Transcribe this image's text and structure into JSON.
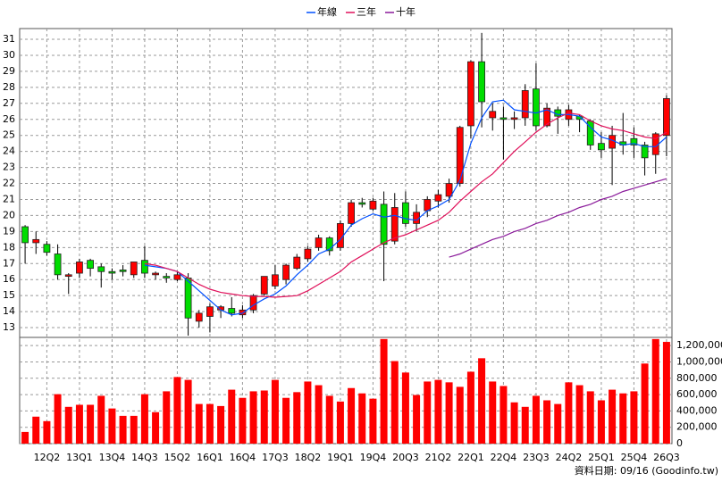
{
  "chart_data": [
    {
      "type": "candlestick",
      "categories": [
        null,
        null,
        "12Q2",
        null,
        null,
        "13Q1",
        null,
        null,
        "13Q4",
        null,
        null,
        "14Q3",
        null,
        null,
        "15Q2",
        null,
        null,
        "16Q1",
        null,
        null,
        "16Q4",
        null,
        null,
        "17Q3",
        null,
        null,
        "18Q2",
        null,
        null,
        "19Q1",
        null,
        null,
        "19Q4",
        null,
        null,
        "20Q3",
        null,
        null,
        "21Q2",
        null,
        null,
        "22Q1",
        null,
        null,
        "22Q4",
        null,
        null,
        "23Q3",
        null,
        null,
        "24Q2",
        null,
        null,
        "25Q1",
        null,
        null,
        "25Q4",
        null,
        null,
        "26Q3"
      ],
      "open": [
        19.3,
        18.3,
        18.2,
        17.6,
        16.2,
        16.4,
        17.2,
        16.8,
        16.5,
        16.6,
        16.3,
        17.2,
        16.3,
        16.2,
        16.0,
        16.1,
        13.4,
        13.7,
        14.1,
        14.2,
        13.8,
        14.1,
        15.1,
        15.6,
        16.0,
        16.7,
        17.3,
        18.0,
        18.6,
        18.0,
        19.5,
        20.8,
        20.4,
        20.7,
        18.4,
        20.8,
        19.5,
        20.3,
        20.9,
        21.2,
        22.0,
        25.6,
        29.6,
        26.1,
        26.1,
        26.0,
        26.1,
        27.9,
        25.6,
        26.6,
        26.0,
        26.2,
        25.9,
        24.5,
        24.2,
        24.6,
        24.8,
        24.4,
        23.8,
        25.0
      ],
      "high": [
        19.4,
        19.0,
        18.4,
        18.2,
        16.4,
        17.3,
        17.3,
        17.0,
        16.7,
        16.9,
        17.1,
        18.1,
        16.5,
        16.4,
        16.5,
        16.4,
        14.1,
        14.5,
        14.4,
        14.9,
        14.4,
        15.1,
        16.2,
        16.9,
        17.0,
        17.6,
        18.1,
        18.8,
        18.7,
        19.7,
        21.0,
        21.1,
        21.1,
        21.5,
        21.4,
        21.5,
        20.7,
        21.2,
        21.6,
        22.3,
        25.6,
        29.7,
        31.4,
        27.0,
        26.8,
        26.5,
        28.2,
        29.5,
        27.0,
        26.8,
        26.9,
        26.3,
        26.0,
        25.2,
        25.6,
        26.4,
        25.5,
        24.6,
        25.2,
        27.5
      ],
      "low": [
        17.0,
        17.6,
        17.5,
        16.0,
        15.1,
        16.1,
        16.2,
        15.5,
        16.0,
        16.2,
        16.1,
        16.1,
        16.0,
        15.8,
        15.9,
        12.5,
        13.0,
        12.7,
        13.6,
        13.7,
        13.6,
        13.9,
        15.0,
        15.4,
        15.7,
        16.6,
        17.1,
        17.8,
        17.5,
        17.8,
        19.3,
        20.5,
        20.3,
        15.9,
        18.2,
        19.3,
        19.0,
        19.9,
        20.5,
        20.8,
        21.8,
        24.8,
        25.5,
        25.3,
        23.5,
        25.4,
        25.6,
        25.3,
        25.5,
        25.1,
        25.6,
        25.2,
        24.1,
        23.6,
        21.9,
        23.8,
        23.6,
        22.5,
        22.6,
        23.7
      ],
      "close": [
        18.3,
        18.5,
        17.7,
        16.3,
        16.3,
        17.1,
        16.7,
        16.5,
        16.4,
        16.5,
        17.1,
        16.4,
        16.4,
        16.1,
        16.3,
        13.6,
        13.9,
        14.3,
        14.3,
        13.9,
        14.1,
        15.0,
        16.2,
        16.3,
        16.9,
        17.4,
        17.9,
        18.6,
        17.8,
        19.5,
        20.8,
        20.7,
        20.9,
        18.2,
        20.5,
        19.5,
        20.2,
        21.0,
        21.3,
        22.0,
        25.5,
        29.6,
        27.1,
        26.5,
        26.0,
        26.1,
        27.8,
        25.6,
        26.7,
        26.2,
        26.6,
        26.0,
        24.4,
        24.1,
        25.0,
        24.4,
        24.4,
        23.6,
        25.1,
        27.3
      ],
      "up_color": "#ff0000",
      "down_color": "#00dd00",
      "series": [
        {
          "name": "年線",
          "color": "#0050ff",
          "values": [
            null,
            null,
            null,
            null,
            null,
            null,
            null,
            null,
            null,
            null,
            null,
            16.9,
            16.8,
            16.7,
            16.5,
            15.9,
            15.3,
            14.7,
            14.1,
            13.8,
            13.9,
            14.4,
            14.8,
            15.1,
            15.6,
            16.3,
            16.9,
            17.6,
            17.9,
            18.5,
            19.4,
            19.8,
            20.1,
            19.9,
            20.0,
            19.8,
            19.7,
            20.3,
            20.6,
            21.0,
            22.2,
            24.5,
            26.1,
            27.1,
            27.2,
            26.6,
            26.5,
            26.4,
            26.6,
            26.3,
            26.3,
            26.2,
            25.5,
            24.9,
            24.7,
            24.4,
            24.5,
            24.3,
            24.3,
            24.9
          ]
        },
        {
          "name": "三年",
          "color": "#e0105a",
          "values": [
            null,
            null,
            null,
            null,
            null,
            null,
            null,
            null,
            null,
            null,
            null,
            17.0,
            16.9,
            16.7,
            16.5,
            16.1,
            15.7,
            15.4,
            15.2,
            15.1,
            15.0,
            14.95,
            14.95,
            14.9,
            14.95,
            15.0,
            15.3,
            15.7,
            16.1,
            16.5,
            17.1,
            17.5,
            17.9,
            18.3,
            18.6,
            18.8,
            19.1,
            19.4,
            19.7,
            20.2,
            20.9,
            21.5,
            22.1,
            22.6,
            23.3,
            24.0,
            24.6,
            25.2,
            25.7,
            26.1,
            26.4,
            26.3,
            25.9,
            25.6,
            25.4,
            25.3,
            25.1,
            24.9,
            24.8,
            25.2
          ]
        },
        {
          "name": "十年",
          "color": "#8a1a9a",
          "values": [
            null,
            null,
            null,
            null,
            null,
            null,
            null,
            null,
            null,
            null,
            null,
            null,
            null,
            null,
            null,
            null,
            null,
            null,
            null,
            null,
            null,
            null,
            null,
            null,
            null,
            null,
            null,
            null,
            null,
            null,
            null,
            null,
            null,
            null,
            null,
            null,
            null,
            null,
            null,
            17.4,
            17.6,
            17.9,
            18.2,
            18.5,
            18.7,
            19.0,
            19.2,
            19.5,
            19.7,
            20.0,
            20.2,
            20.5,
            20.7,
            21.0,
            21.2,
            21.5,
            21.7,
            21.9,
            22.1,
            22.3
          ]
        }
      ],
      "ylim": [
        12.39,
        31.67
      ],
      "yticks": [
        13,
        14,
        15,
        16,
        17,
        18,
        19,
        20,
        21,
        22,
        23,
        24,
        25,
        26,
        27,
        28,
        29,
        30,
        31
      ],
      "grid": true,
      "legend": "top",
      "footnote": "資料日期: 09/16 (Goodinfo.tw)"
    },
    {
      "type": "bar",
      "values": [
        143000,
        330000,
        275000,
        605000,
        450000,
        475000,
        475000,
        585000,
        430000,
        340000,
        340000,
        605000,
        385000,
        640000,
        815000,
        780000,
        485000,
        485000,
        460000,
        660000,
        560000,
        640000,
        650000,
        780000,
        560000,
        630000,
        760000,
        715000,
        585000,
        515000,
        680000,
        615000,
        550000,
        1280000,
        1010000,
        870000,
        595000,
        760000,
        780000,
        750000,
        695000,
        880000,
        1045000,
        760000,
        705000,
        505000,
        450000,
        585000,
        530000,
        485000,
        750000,
        715000,
        640000,
        530000,
        660000,
        615000,
        640000,
        980000,
        1280000,
        1245000
      ],
      "color": "#ff0000",
      "ylim": [
        0,
        1300000
      ],
      "yticks": [
        0,
        {
          "value": 200000,
          "label": "200,000"
        },
        {
          "value": 400000,
          "label": "400,000"
        },
        {
          "value": 600000,
          "label": "600,000"
        },
        {
          "value": 800000,
          "label": "800,000"
        },
        {
          "value": 1000000,
          "label": "1,000,000"
        },
        {
          "value": 1200000,
          "label": "1,200,000"
        }
      ],
      "grid": true
    }
  ]
}
